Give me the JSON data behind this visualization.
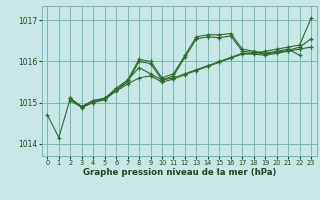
{
  "bg_color": "#c8e8e8",
  "grid_color": "#7ab8b8",
  "line_color": "#2d6a2d",
  "xlabel": "Graphe pression niveau de la mer (hPa)",
  "tick_color": "#1a4a1a",
  "yticks": [
    1014,
    1015,
    1016,
    1017
  ],
  "xticks": [
    0,
    1,
    2,
    3,
    4,
    5,
    6,
    7,
    8,
    9,
    10,
    11,
    12,
    13,
    14,
    15,
    16,
    17,
    18,
    19,
    20,
    21,
    22,
    23
  ],
  "xlim": [
    -0.5,
    23.5
  ],
  "ylim": [
    1013.7,
    1017.35
  ],
  "series": [
    {
      "x": [
        0,
        1,
        2,
        3,
        4,
        5,
        6,
        7,
        8,
        9,
        10,
        11,
        12,
        13,
        14,
        15,
        16,
        17,
        18,
        19,
        20,
        21,
        22,
        23
      ],
      "y": [
        1014.7,
        1014.15,
        1015.1,
        1014.9,
        1015.0,
        1015.1,
        1015.3,
        1015.55,
        1015.85,
        1015.7,
        1015.55,
        1015.6,
        1015.7,
        1015.8,
        1015.9,
        1016.0,
        1016.1,
        1016.2,
        1016.2,
        1016.25,
        1016.3,
        1016.35,
        1016.4,
        1017.05
      ]
    },
    {
      "x": [
        2,
        3,
        4,
        5,
        6,
        7,
        8,
        9,
        10,
        11,
        12,
        13,
        14,
        15,
        16,
        17,
        18,
        19,
        20,
        21,
        22
      ],
      "y": [
        1015.1,
        1014.9,
        1015.05,
        1015.1,
        1015.35,
        1015.55,
        1016.05,
        1016.0,
        1015.6,
        1015.7,
        1016.15,
        1016.6,
        1016.65,
        1016.65,
        1016.68,
        1016.3,
        1016.25,
        1016.2,
        1016.25,
        1016.3,
        1016.15
      ]
    },
    {
      "x": [
        2,
        3,
        4,
        5,
        6,
        7,
        8,
        9,
        10,
        11,
        12,
        13,
        14,
        15,
        16,
        17,
        18,
        19,
        20,
        21,
        22,
        23
      ],
      "y": [
        1015.1,
        1014.9,
        1015.05,
        1015.1,
        1015.3,
        1015.5,
        1016.0,
        1015.95,
        1015.55,
        1015.65,
        1016.1,
        1016.55,
        1016.6,
        1016.58,
        1016.62,
        1016.25,
        1016.22,
        1016.18,
        1016.22,
        1016.27,
        1016.35,
        1016.55
      ]
    },
    {
      "x": [
        2,
        3,
        4,
        5,
        6,
        7,
        8,
        9,
        10,
        11,
        12,
        13,
        14,
        15,
        16,
        17,
        18,
        19,
        20,
        21,
        22,
        23
      ],
      "y": [
        1015.05,
        1014.88,
        1015.0,
        1015.07,
        1015.28,
        1015.45,
        1015.6,
        1015.65,
        1015.5,
        1015.57,
        1015.68,
        1015.78,
        1015.88,
        1015.98,
        1016.08,
        1016.18,
        1016.18,
        1016.15,
        1016.2,
        1016.25,
        1016.3,
        1016.35
      ]
    }
  ]
}
